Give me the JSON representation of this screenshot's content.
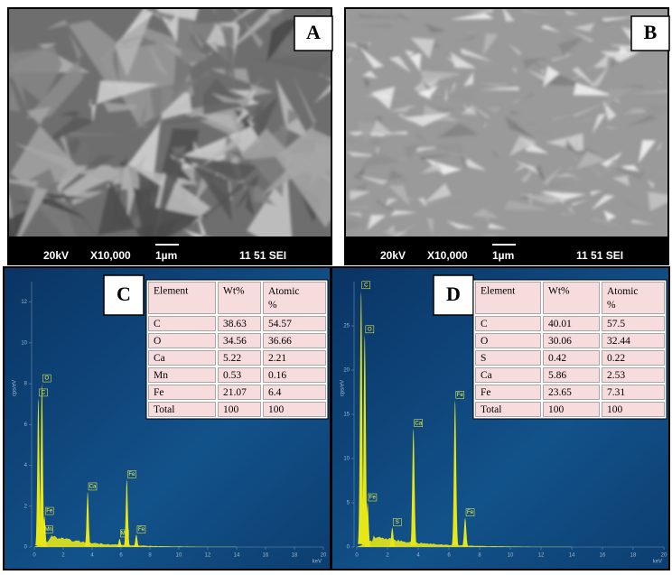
{
  "sem_panels": [
    {
      "letter": "A",
      "caption": [
        "20kV",
        "X10,000",
        "1µm",
        "11 51 SEI"
      ]
    },
    {
      "letter": "B",
      "caption": [
        "20kV",
        "X10,000",
        "1µm",
        "11 51 SEI"
      ]
    }
  ],
  "eds_panels": [
    {
      "letter": "C",
      "table": {
        "header": [
          "Element",
          "Wt%",
          "Atomic %"
        ],
        "rows": [
          [
            "C",
            "38.63",
            "54.57"
          ],
          [
            "O",
            "34.56",
            "36.66"
          ],
          [
            "Ca",
            "5.22",
            "2.21"
          ],
          [
            "Mn",
            "0.53",
            "0.16"
          ],
          [
            "Fe",
            "21.07",
            "6.4"
          ],
          [
            "Total",
            "100",
            "100"
          ]
        ]
      },
      "chart_data": {
        "type": "spectrum",
        "y_label": "cps/eV",
        "x_label": "keV",
        "xlim": [
          0,
          20
        ],
        "xticks": [
          0,
          2,
          4,
          6,
          8,
          10,
          12,
          14,
          16,
          18,
          20
        ],
        "ylim": [
          0,
          13
        ],
        "yticks": [
          0,
          2,
          4,
          6,
          8,
          10,
          12
        ],
        "color": "#e6e619",
        "peaks": [
          {
            "label": "C",
            "energy": 0.28,
            "height": 7.3
          },
          {
            "label": "O",
            "energy": 0.52,
            "height": 8.0
          },
          {
            "label": "Fe",
            "energy": 0.7,
            "height": 1.5
          },
          {
            "label": "Mn",
            "energy": 0.64,
            "height": 0.6
          },
          {
            "label": "Ca",
            "energy": 3.69,
            "height": 2.7
          },
          {
            "label": "Mn",
            "energy": 5.9,
            "height": 0.4
          },
          {
            "label": "Fe",
            "energy": 6.4,
            "height": 3.3
          },
          {
            "label": "Fe",
            "energy": 7.06,
            "height": 0.6
          }
        ]
      }
    },
    {
      "letter": "D",
      "table": {
        "header": [
          "Element",
          "Wt%",
          "Atomic %"
        ],
        "rows": [
          [
            "C",
            "40.01",
            "57.5"
          ],
          [
            "O",
            "30.06",
            "32.44"
          ],
          [
            "S",
            "0.42",
            "0.22"
          ],
          [
            "Ca",
            "5.86",
            "2.53"
          ],
          [
            "Fe",
            "23.65",
            "7.31"
          ],
          [
            "Total",
            "100",
            "100"
          ]
        ]
      },
      "chart_data": {
        "type": "spectrum",
        "y_label": "cps/eV",
        "x_label": "keV",
        "xlim": [
          0,
          20
        ],
        "xticks": [
          0,
          2,
          4,
          6,
          8,
          10,
          12,
          14,
          16,
          18,
          20
        ],
        "ylim": [
          0,
          30
        ],
        "yticks": [
          0,
          5,
          10,
          15,
          20,
          25
        ],
        "color": "#e6e619",
        "peaks": [
          {
            "label": "C",
            "energy": 0.28,
            "height": 29
          },
          {
            "label": "O",
            "energy": 0.52,
            "height": 24
          },
          {
            "label": "Fe",
            "energy": 0.7,
            "height": 5
          },
          {
            "label": "S",
            "energy": 2.31,
            "height": 2.2
          },
          {
            "label": "Ca",
            "energy": 3.69,
            "height": 13.4
          },
          {
            "label": "Fe",
            "energy": 6.4,
            "height": 16.6
          },
          {
            "label": "Fe",
            "energy": 7.06,
            "height": 3.3
          }
        ]
      }
    }
  ]
}
